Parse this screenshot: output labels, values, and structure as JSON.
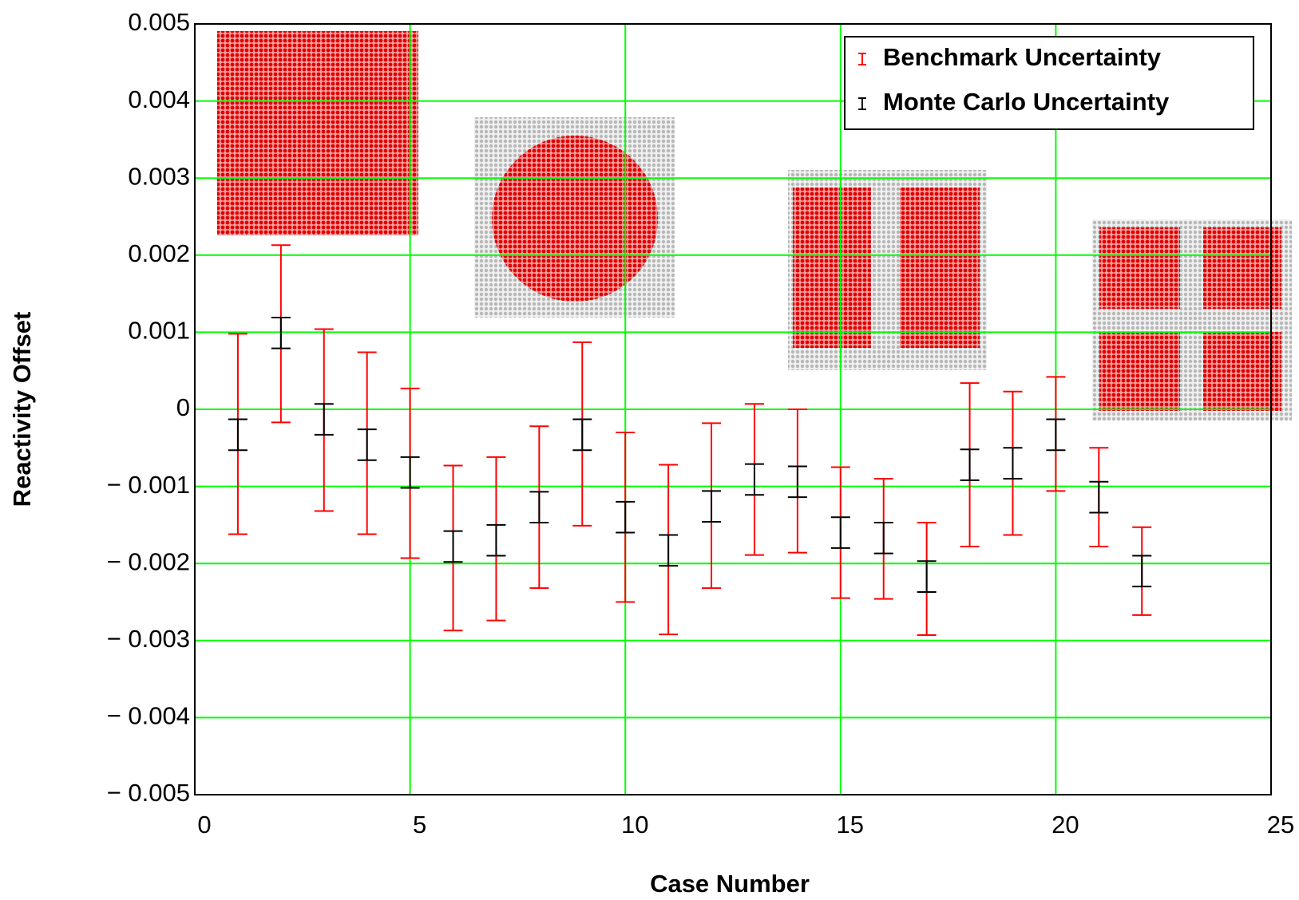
{
  "chart_data": {
    "type": "errorbar",
    "xlabel": "Case Number",
    "ylabel": "Reactivity Offset",
    "x": [
      1,
      2,
      3,
      4,
      5,
      6,
      7,
      8,
      9,
      10,
      11,
      12,
      13,
      14,
      15,
      16,
      17,
      18,
      19,
      20,
      21,
      22
    ],
    "series": [
      {
        "name": "Benchmark Uncertainty",
        "color": "#ff0000",
        "values": [
          -0.00032,
          0.00098,
          -0.00014,
          -0.00044,
          -0.00083,
          -0.0018,
          -0.00168,
          -0.00127,
          -0.00032,
          -0.0014,
          -0.00182,
          -0.00125,
          -0.00091,
          -0.00093,
          -0.0016,
          -0.00168,
          -0.0022,
          -0.00072,
          -0.0007,
          -0.00032,
          -0.00114,
          -0.0021
        ],
        "errors": [
          0.0013,
          0.00115,
          0.00118,
          0.00118,
          0.0011,
          0.00107,
          0.00106,
          0.00105,
          0.00119,
          0.0011,
          0.0011,
          0.00107,
          0.00098,
          0.00093,
          0.00085,
          0.00078,
          0.00073,
          0.00106,
          0.00093,
          0.00074,
          0.00064,
          0.00057
        ]
      },
      {
        "name": "Monte Carlo Uncertainty",
        "color": "#000000",
        "values": [
          -0.00033,
          0.00099,
          -0.00013,
          -0.00046,
          -0.00082,
          -0.00178,
          -0.0017,
          -0.00127,
          -0.00033,
          -0.0014,
          -0.00183,
          -0.00126,
          -0.00091,
          -0.00094,
          -0.0016,
          -0.00167,
          -0.00217,
          -0.00072,
          -0.0007,
          -0.00033,
          -0.00114,
          -0.0021
        ],
        "errors": [
          0.0002,
          0.0002,
          0.0002,
          0.0002,
          0.0002,
          0.0002,
          0.0002,
          0.0002,
          0.0002,
          0.0002,
          0.0002,
          0.0002,
          0.0002,
          0.0002,
          0.0002,
          0.0002,
          0.0002,
          0.0002,
          0.0002,
          0.0002,
          0.0002,
          0.0002
        ]
      }
    ],
    "xlim": [
      0,
      25
    ],
    "xticks": [
      0,
      5,
      10,
      15,
      20,
      25
    ],
    "ylim": [
      -0.005,
      0.005
    ],
    "yticks": [
      {
        "value": -0.005,
        "label": "− 0.005"
      },
      {
        "value": -0.004,
        "label": "− 0.004"
      },
      {
        "value": -0.003,
        "label": "− 0.003"
      },
      {
        "value": -0.002,
        "label": "− 0.002"
      },
      {
        "value": -0.001,
        "label": "− 0.001"
      },
      0,
      0.001,
      0.002,
      0.003,
      0.004,
      0.005
    ],
    "grid": true,
    "grid_color": "#00ff00",
    "legend": "upper right"
  }
}
